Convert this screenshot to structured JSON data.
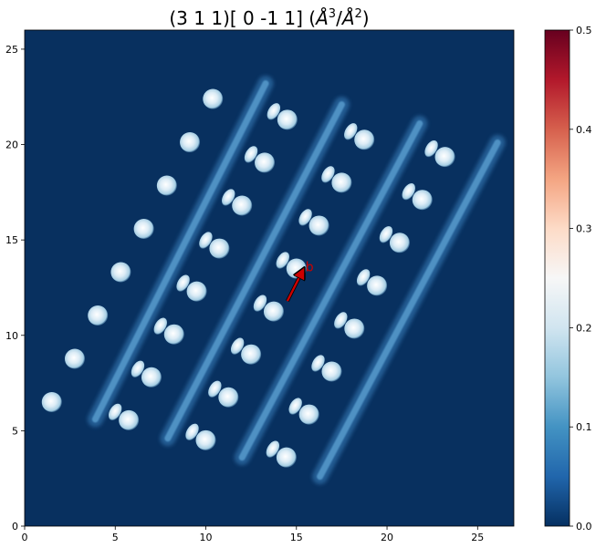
{
  "chart_data": {
    "type": "heatmap",
    "title": "(3 1 1)[ 0 -1  1] (Å³/Å²)",
    "title_parts": {
      "prefix": "(3 1 1)[ 0 -1  1] (",
      "unit_a": "Å",
      "exp_a": "3",
      "sep": "/",
      "unit_b": "Å",
      "exp_b": "2",
      "suffix": ")"
    },
    "xlabel": "",
    "ylabel": "",
    "xlim": [
      0,
      27
    ],
    "ylim": [
      0,
      26
    ],
    "xticks": [
      0,
      5,
      10,
      15,
      20,
      25
    ],
    "yticks": [
      0,
      5,
      10,
      15,
      20,
      25
    ],
    "colormap": "RdBu_r",
    "colorbar": {
      "min": 0.0,
      "max": 0.5,
      "ticks": [
        0.0,
        0.1,
        0.2,
        0.3,
        0.4,
        0.5
      ]
    },
    "background_color": "#08305f",
    "atom_columns": [
      {
        "start": [
          1.5,
          6.5
        ],
        "step": [
          1.27,
          2.27
        ],
        "count": 8
      },
      {
        "start": [
          5.75,
          5.55
        ],
        "step": [
          1.25,
          2.25
        ],
        "count": 8,
        "crescent": true
      },
      {
        "start": [
          10.0,
          4.5
        ],
        "step": [
          1.25,
          2.25
        ],
        "count": 8,
        "crescent": true
      },
      {
        "start": [
          14.45,
          3.6
        ],
        "step": [
          1.25,
          2.25
        ],
        "count": 8,
        "crescent": true
      }
    ],
    "streaks": [
      {
        "from": [
          3.9,
          5.6
        ],
        "to": [
          13.3,
          23.2
        ]
      },
      {
        "from": [
          7.9,
          4.6
        ],
        "to": [
          17.5,
          22.1
        ]
      },
      {
        "from": [
          12.0,
          3.6
        ],
        "to": [
          21.8,
          21.1
        ]
      },
      {
        "from": [
          16.3,
          2.6
        ],
        "to": [
          26.1,
          20.1
        ]
      }
    ],
    "vector": {
      "label": "b",
      "from": [
        14.5,
        11.8
      ],
      "to": [
        15.3,
        13.3
      ],
      "color": "#cc0000"
    }
  }
}
